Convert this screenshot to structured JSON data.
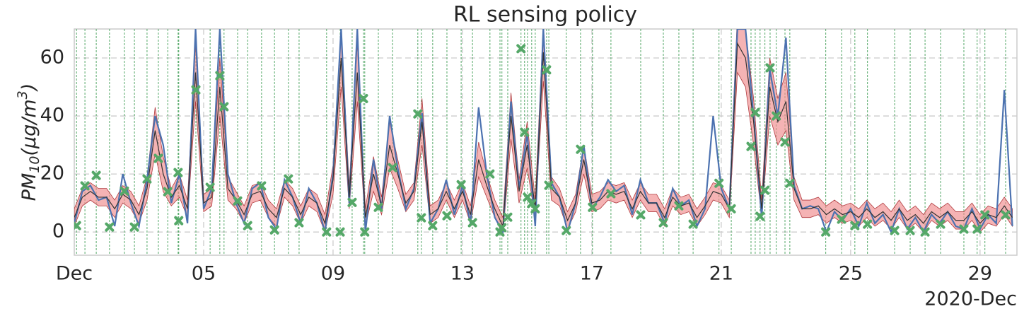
{
  "chart_data": {
    "type": "line",
    "title": "RL sensing policy",
    "ylabel": {
      "base": "PM",
      "sub": "10",
      "mid": "(μg/m",
      "sup": "3",
      "end": ")"
    },
    "x_offset_label": "2020-Dec",
    "xlim": [
      1,
      30.14
    ],
    "xticks": [
      {
        "value": 1,
        "label": "Dec"
      },
      {
        "value": 5,
        "label": "05"
      },
      {
        "value": 9,
        "label": "09"
      },
      {
        "value": 13,
        "label": "13"
      },
      {
        "value": 17,
        "label": "17"
      },
      {
        "value": 21,
        "label": "21"
      },
      {
        "value": 25,
        "label": "25"
      },
      {
        "value": 29,
        "label": "29"
      }
    ],
    "ylim": [
      -8,
      70
    ],
    "yticks": [
      0,
      20,
      40,
      60
    ],
    "grid": true,
    "x": [
      1,
      1.25,
      1.5,
      1.75,
      2,
      2.25,
      2.5,
      2.75,
      3,
      3.25,
      3.5,
      3.75,
      4,
      4.25,
      4.5,
      4.75,
      5,
      5.25,
      5.5,
      5.75,
      6,
      6.25,
      6.5,
      6.75,
      7,
      7.25,
      7.5,
      7.75,
      8,
      8.25,
      8.5,
      8.75,
      9,
      9.25,
      9.5,
      9.75,
      10,
      10.25,
      10.5,
      10.75,
      11,
      11.25,
      11.5,
      11.75,
      12,
      12.25,
      12.5,
      12.75,
      13,
      13.25,
      13.5,
      13.75,
      14,
      14.25,
      14.5,
      14.75,
      15,
      15.25,
      15.5,
      15.75,
      16,
      16.25,
      16.5,
      16.75,
      17,
      17.25,
      17.5,
      17.75,
      18,
      18.25,
      18.5,
      18.75,
      19,
      19.25,
      19.5,
      19.75,
      20,
      20.25,
      20.5,
      20.75,
      21,
      21.25,
      21.5,
      21.75,
      22,
      22.25,
      22.5,
      22.75,
      23,
      23.25,
      23.5,
      23.75,
      24,
      24.25,
      24.5,
      24.75,
      25,
      25.25,
      25.5,
      25.75,
      26,
      26.25,
      26.5,
      26.75,
      27,
      27.25,
      27.5,
      27.75,
      28,
      28.25,
      28.5,
      28.75,
      29,
      29.25,
      29.5,
      29.75,
      30
    ],
    "series": [
      {
        "color": "#4c72b0",
        "values": [
          3,
          14,
          16,
          11,
          12,
          2,
          20,
          10,
          2,
          18,
          40,
          30,
          10,
          20,
          3,
          70,
          8,
          15,
          70,
          20,
          10,
          3,
          15,
          17,
          5,
          1,
          18,
          12,
          3,
          15,
          10,
          0,
          20,
          70,
          10,
          70,
          0,
          25,
          8,
          40,
          22,
          8,
          15,
          41,
          3,
          8,
          18,
          6,
          16,
          3,
          43,
          20,
          5,
          0,
          45,
          15,
          34,
          2,
          70,
          17,
          12,
          0,
          10,
          30,
          8,
          12,
          18,
          14,
          16,
          6,
          18,
          10,
          10,
          3,
          15,
          9,
          11,
          2,
          8,
          40,
          15,
          8,
          70,
          70,
          40,
          5,
          56,
          40,
          67,
          16,
          8,
          9,
          8,
          0,
          7,
          4,
          8,
          2,
          10,
          3,
          6,
          0,
          8,
          1,
          5,
          0,
          6,
          3,
          7,
          2,
          1,
          8,
          1,
          6,
          3,
          49,
          2
        ]
      },
      {
        "color": "#333333",
        "band_color": "#f08a8c",
        "values": [
          5,
          12,
          14,
          12,
          12,
          8,
          13,
          11,
          6,
          15,
          35,
          20,
          12,
          16,
          8,
          55,
          10,
          12,
          50,
          15,
          11,
          6,
          13,
          14,
          8,
          5,
          15,
          12,
          6,
          12,
          10,
          3,
          18,
          60,
          12,
          55,
          5,
          20,
          9,
          30,
          20,
          10,
          14,
          38,
          6,
          8,
          14,
          8,
          14,
          6,
          25,
          16,
          8,
          2,
          40,
          14,
          30,
          8,
          62,
          15,
          12,
          4,
          10,
          25,
          10,
          11,
          14,
          13,
          14,
          8,
          14,
          10,
          10,
          5,
          12,
          9,
          10,
          5,
          9,
          14,
          13,
          8,
          65,
          60,
          38,
          8,
          50,
          38,
          45,
          15,
          8,
          8,
          9,
          6,
          8,
          6,
          7,
          5,
          8,
          5,
          7,
          4,
          8,
          4,
          6,
          3,
          7,
          5,
          7,
          4,
          4,
          7,
          3,
          6,
          5,
          9,
          5
        ],
        "error": [
          3,
          3,
          3,
          3,
          3,
          3,
          3,
          3,
          3,
          4,
          8,
          6,
          3,
          4,
          3,
          10,
          3,
          3,
          10,
          4,
          3,
          3,
          3,
          3,
          3,
          3,
          3,
          3,
          3,
          3,
          3,
          3,
          5,
          10,
          4,
          10,
          3,
          6,
          3,
          8,
          5,
          3,
          3,
          8,
          3,
          3,
          3,
          3,
          3,
          3,
          6,
          4,
          3,
          3,
          8,
          4,
          8,
          3,
          10,
          4,
          3,
          3,
          3,
          5,
          3,
          3,
          3,
          3,
          3,
          3,
          3,
          3,
          3,
          3,
          3,
          3,
          3,
          3,
          3,
          3,
          3,
          3,
          10,
          10,
          8,
          3,
          10,
          8,
          10,
          4,
          3,
          3,
          3,
          3,
          3,
          3,
          3,
          3,
          3,
          3,
          3,
          3,
          3,
          3,
          3,
          3,
          3,
          3,
          3,
          3,
          3,
          3,
          3,
          3,
          3,
          3,
          3
        ]
      }
    ],
    "samples": {
      "color": "#55a868",
      "x": [
        1.07,
        1.33,
        1.68,
        2.09,
        2.55,
        2.86,
        3.25,
        3.6,
        3.89,
        4.21,
        4.23,
        4.76,
        5.2,
        5.5,
        5.63,
        6.05,
        6.36,
        6.79,
        7.19,
        7.62,
        7.95,
        8.8,
        9.22,
        9.59,
        9.94,
        9.98,
        10.4,
        10.84,
        11.62,
        11.73,
        12.08,
        12.52,
        12.96,
        13.31,
        13.85,
        14.16,
        14.22,
        14.4,
        14.81,
        14.92,
        15.01,
        15.14,
        15.25,
        15.6,
        15.67,
        16.21,
        16.65,
        17.02,
        17.59,
        18.51,
        19.21,
        19.69,
        20.13,
        20.93,
        21.31,
        21.92,
        22.05,
        22.2,
        22.35,
        22.51,
        22.7,
        22.97,
        23.12,
        24.23,
        24.72,
        25.13,
        25.52,
        26.36,
        26.84,
        27.3,
        27.78,
        28.5,
        28.91,
        29.15,
        29.79
      ],
      "y": [
        2.2,
        15.9,
        19.5,
        1.7,
        14.1,
        1.7,
        18.3,
        25.4,
        13.9,
        20.5,
        3.9,
        49,
        15.4,
        53.9,
        43.2,
        10.7,
        2.2,
        15.9,
        0.7,
        18.3,
        3.2,
        0,
        0,
        10.2,
        46,
        0,
        8.5,
        22.2,
        40.7,
        4.9,
        2.2,
        5.6,
        16.3,
        3.2,
        20,
        0,
        1.5,
        5.1,
        63.2,
        34.4,
        12,
        9.8,
        8,
        55.9,
        16.1,
        0.5,
        28.5,
        8.5,
        13.2,
        5.9,
        3.2,
        9,
        2.7,
        16.8,
        8,
        29.5,
        41.2,
        5.4,
        14.4,
        56.6,
        40,
        31,
        16.8,
        0,
        4.4,
        2.2,
        2.7,
        0.5,
        0.5,
        0,
        2.7,
        1,
        1,
        5.9,
        5.9
      ]
    }
  }
}
